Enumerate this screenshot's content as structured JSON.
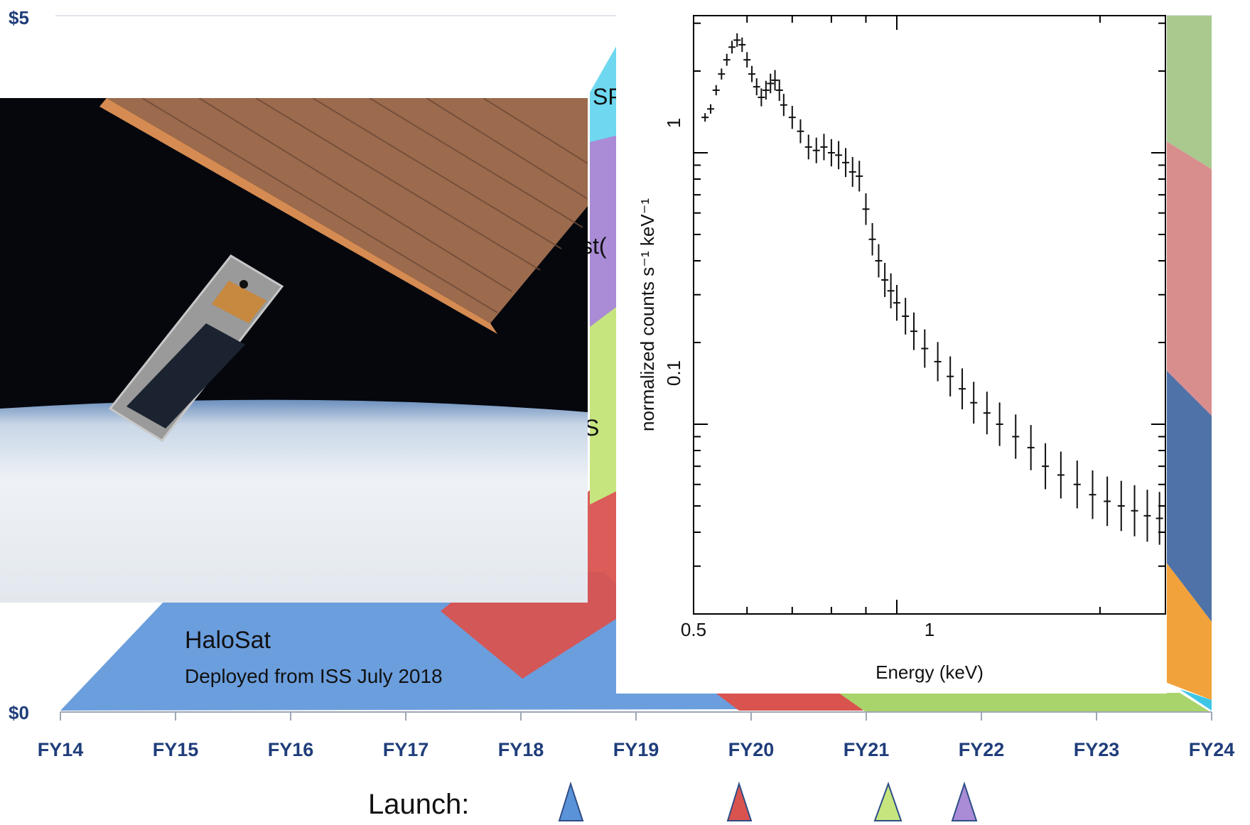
{
  "colors": {
    "axis_text": "#1f3d7a",
    "halosat": "#5b93d9",
    "red": "#d9534f",
    "green": "#a9d46b",
    "purple": "#a98bd6",
    "cyan": "#6fd8f0",
    "sage": "#a9c98f",
    "rose": "#d98e8e",
    "slate": "#4f72a8",
    "orange": "#f2a23a",
    "space": "#05070d",
    "panel": "#b67a52",
    "earth": "#dfe6f0"
  },
  "budget": {
    "y_top_label": "$5",
    "y_bottom_label": "$0",
    "fiscal_years": [
      "FY14",
      "FY15",
      "FY16",
      "FY17",
      "FY18",
      "FY19",
      "FY20",
      "FY21",
      "FY22",
      "FY23",
      "FY24"
    ],
    "mission_partial_labels": [
      "SP",
      "st(",
      "S"
    ],
    "halosat_label": "HaloSat",
    "halosat_note": "Deployed from ISS July 2018",
    "launch_label": "Launch:"
  },
  "photo": {
    "icon": "cubesat-photo"
  },
  "chart_data": [
    {
      "type": "scatter",
      "title": "",
      "xlabel": "Energy (keV)",
      "ylabel": "normalized counts s⁻¹ keV⁻¹",
      "xscale": "log",
      "yscale": "log",
      "xlim": [
        0.5,
        2.5
      ],
      "ylim": [
        0.02,
        3.2
      ],
      "xticks": [
        {
          "value": 0.5,
          "label": "0.5"
        },
        {
          "value": 1,
          "label": "1"
        }
      ],
      "yticks": [
        {
          "value": 0.1,
          "label": "0.1"
        },
        {
          "value": 1,
          "label": "1"
        }
      ],
      "x": [
        0.52,
        0.53,
        0.54,
        0.55,
        0.56,
        0.57,
        0.58,
        0.59,
        0.6,
        0.61,
        0.62,
        0.63,
        0.64,
        0.65,
        0.66,
        0.67,
        0.68,
        0.7,
        0.72,
        0.74,
        0.76,
        0.78,
        0.8,
        0.82,
        0.84,
        0.86,
        0.88,
        0.9,
        0.92,
        0.94,
        0.96,
        0.98,
        1.0,
        1.03,
        1.06,
        1.1,
        1.15,
        1.2,
        1.25,
        1.3,
        1.36,
        1.42,
        1.5,
        1.58,
        1.66,
        1.75,
        1.85,
        1.95,
        2.05,
        2.15,
        2.25,
        2.35,
        2.45
      ],
      "y": [
        1.35,
        1.45,
        1.7,
        1.95,
        2.2,
        2.45,
        2.6,
        2.5,
        2.2,
        1.95,
        1.75,
        1.6,
        1.7,
        1.8,
        1.85,
        1.7,
        1.5,
        1.35,
        1.2,
        1.05,
        1.02,
        1.05,
        1.0,
        0.98,
        0.92,
        0.85,
        0.82,
        0.62,
        0.48,
        0.4,
        0.34,
        0.31,
        0.28,
        0.25,
        0.22,
        0.19,
        0.17,
        0.15,
        0.135,
        0.12,
        0.11,
        0.1,
        0.09,
        0.082,
        0.07,
        0.065,
        0.06,
        0.055,
        0.052,
        0.05,
        0.048,
        0.046,
        0.045
      ],
      "grid": false,
      "legend": "none"
    }
  ]
}
